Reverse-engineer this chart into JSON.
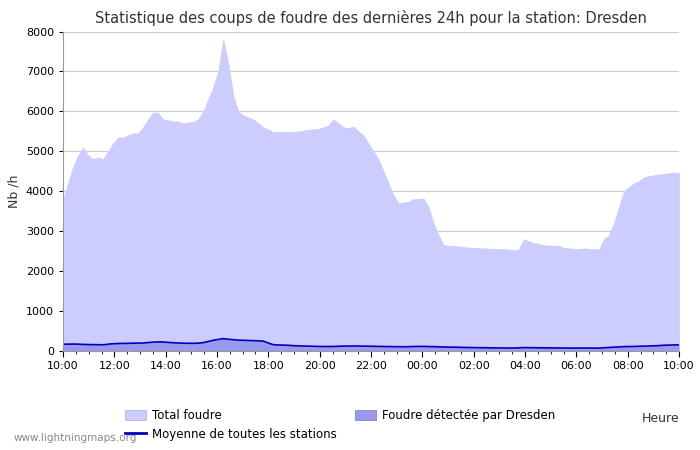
{
  "title": "Statistique des coups de foudre des dernières 24h pour la station: Dresden",
  "xlabel": "Heure",
  "ylabel": "Nb /h",
  "xlim_labels": [
    "10:00",
    "12:00",
    "14:00",
    "16:00",
    "18:00",
    "20:00",
    "22:00",
    "00:00",
    "02:00",
    "04:00",
    "06:00",
    "08:00",
    "10:00"
  ],
  "ylim": [
    0,
    8000
  ],
  "yticks": [
    0,
    1000,
    2000,
    3000,
    4000,
    5000,
    6000,
    7000,
    8000
  ],
  "total_foudre": [
    3800,
    4200,
    4600,
    4900,
    5100,
    4900,
    4800,
    4850,
    4800,
    5000,
    5200,
    5350,
    5350,
    5400,
    5450,
    5450,
    5600,
    5800,
    5970,
    5970,
    5800,
    5780,
    5750,
    5750,
    5700,
    5720,
    5740,
    5800,
    6000,
    6300,
    6610,
    7000,
    7800,
    7200,
    6400,
    6000,
    5900,
    5850,
    5800,
    5700,
    5600,
    5550,
    5480,
    5480,
    5490,
    5490,
    5490,
    5500,
    5520,
    5540,
    5550,
    5560,
    5600,
    5650,
    5800,
    5700,
    5600,
    5580,
    5620,
    5500,
    5400,
    5200,
    5000,
    4800,
    4500,
    4200,
    3900,
    3700,
    3720,
    3740,
    3800,
    3810,
    3820,
    3600,
    3200,
    2900,
    2650,
    2640,
    2630,
    2620,
    2600,
    2590,
    2580,
    2575,
    2570,
    2565,
    2560,
    2555,
    2550,
    2540,
    2535,
    2540,
    2800,
    2750,
    2700,
    2680,
    2650,
    2640,
    2635,
    2640,
    2580,
    2570,
    2560,
    2555,
    2570,
    2560,
    2550,
    2545,
    2800,
    2900,
    3200,
    3600,
    4000,
    4100,
    4200,
    4250,
    4350,
    4380,
    4400,
    4420,
    4440,
    4450,
    4460,
    4450
  ],
  "foudre_dresden": [
    180,
    180,
    178,
    176,
    175,
    172,
    168,
    165,
    162,
    178,
    192,
    198,
    200,
    202,
    205,
    208,
    210,
    222,
    235,
    240,
    238,
    225,
    215,
    208,
    204,
    202,
    200,
    205,
    220,
    250,
    280,
    300,
    320,
    305,
    295,
    285,
    280,
    275,
    270,
    265,
    260,
    210,
    170,
    162,
    155,
    148,
    140,
    135,
    130,
    128,
    125,
    122,
    120,
    118,
    120,
    125,
    128,
    130,
    132,
    130,
    128,
    126,
    124,
    122,
    120,
    118,
    116,
    114,
    112,
    115,
    118,
    120,
    122,
    118,
    115,
    110,
    105,
    102,
    100,
    98,
    95,
    92,
    90,
    88,
    85,
    83,
    81,
    80,
    80,
    79,
    78,
    82,
    90,
    88,
    86,
    85,
    83,
    82,
    81,
    80,
    79,
    78,
    77,
    78,
    79,
    78,
    77,
    76,
    85,
    92,
    102,
    108,
    115,
    118,
    120,
    125,
    128,
    132,
    136,
    142,
    150,
    155,
    160,
    165
  ],
  "moyenne_stations": [
    170,
    172,
    174,
    172,
    165,
    162,
    160,
    158,
    155,
    170,
    182,
    188,
    190,
    192,
    196,
    198,
    200,
    212,
    222,
    228,
    226,
    215,
    208,
    200,
    196,
    193,
    192,
    196,
    210,
    238,
    268,
    290,
    310,
    295,
    283,
    272,
    268,
    264,
    260,
    254,
    248,
    200,
    158,
    152,
    148,
    142,
    135,
    128,
    124,
    122,
    118,
    115,
    113,
    112,
    114,
    118,
    122,
    124,
    126,
    124,
    122,
    120,
    118,
    115,
    113,
    111,
    110,
    108,
    106,
    109,
    112,
    114,
    116,
    112,
    109,
    105,
    100,
    98,
    96,
    94,
    90,
    88,
    86,
    84,
    82,
    80,
    78,
    76,
    76,
    75,
    74,
    78,
    86,
    84,
    82,
    81,
    79,
    78,
    77,
    76,
    75,
    74,
    73,
    74,
    75,
    74,
    73,
    72,
    81,
    88,
    96,
    102,
    109,
    112,
    114,
    118,
    122,
    126,
    130,
    136,
    144,
    148,
    152,
    156
  ],
  "color_total": "#ccccff",
  "color_total_edge": "#9999cc",
  "color_dresden": "#9999ee",
  "color_moyenne": "#0000bb",
  "background_color": "#ffffff",
  "plot_bg_color": "#ffffff",
  "grid_color": "#cccccc",
  "watermark": "www.lightningmaps.org",
  "legend_total": "Total foudre",
  "legend_moyenne": "Moyenne de toutes les stations",
  "legend_dresden": "Foudre détectée par Dresden"
}
